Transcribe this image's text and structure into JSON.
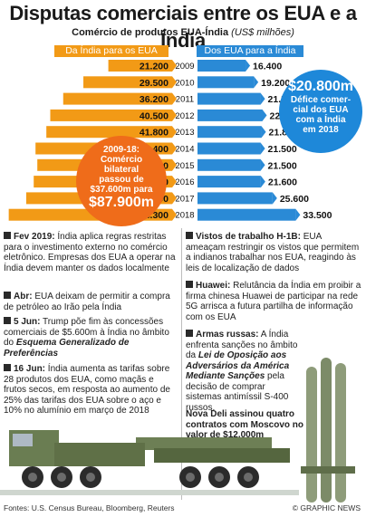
{
  "title": "Disputas comerciais entre os EUA e a Índia",
  "subtitle_main": "Comércio de produtos EUA-Índia",
  "subtitle_unit": "(US$ milhões)",
  "colors": {
    "india_to_us": "#f29a16",
    "us_to_india": "#2a8ad6",
    "orange_callout": "#ef6c1a",
    "blue_callout": "#1e88d9"
  },
  "chart_data": {
    "type": "bar",
    "title": "Comércio de produtos EUA-Índia (US$ milhões)",
    "categories": [
      "2009",
      "2010",
      "2011",
      "2012",
      "2013",
      "2014",
      "2015",
      "2016",
      "2017",
      "2018"
    ],
    "series": [
      {
        "name": "Da Índia para os EUA",
        "values": [
          21200,
          29500,
          36200,
          40500,
          41800,
          45400,
          44800,
          46000,
          48500,
          54300
        ],
        "labels": [
          "21.200",
          "29.500",
          "36.200",
          "40.500",
          "41.800",
          "45.400",
          "44.800",
          "46.000",
          "48.500",
          "54.300"
        ]
      },
      {
        "name": "Dos EUA para a Índia",
        "values": [
          16400,
          19200,
          21500,
          22100,
          21800,
          21500,
          21500,
          21600,
          25600,
          33500
        ],
        "labels": [
          "16.400",
          "19.200",
          "21.500",
          "22.100",
          "21.800",
          "21.500",
          "21.500",
          "21.600",
          "25.600",
          "33.500"
        ]
      }
    ],
    "legend": "top"
  },
  "callout_blue": {
    "big": "$20.800m",
    "small": [
      "Déficе comer-",
      "cial dos EUA",
      "com a Índia",
      "em 2018"
    ]
  },
  "callout_orange": {
    "small": [
      "2009-18:",
      "Comércio",
      "bilateral",
      "passou de",
      "$37.600m para"
    ],
    "big": "$87.900m"
  },
  "notes_left": [
    {
      "head": "Fev 2019:",
      "text": " Índia aplica regras restritas para o investimento externo no comércio eletrônico. Empresas dos EUA a operar na Índia devem manter os dados localmente"
    },
    {
      "head": "Abr:",
      "text": " EUA deixam de permitir a compra de petróleo ao Irão pela Índia"
    },
    {
      "head": "5 Jun:",
      "text": " Trump põe fim às concessões comerciais de $5.600m à Índia no âmbito do ",
      "em": "Esquema Generalizado de Preferências"
    },
    {
      "head": "16 Jun:",
      "text": " Índia aumenta as tarifas sobre 28 produtos dos EUA, como maçãs e frutos secos, em resposta ao aumento de 25% das tarifas dos EUA sobre o aço e 10% no alumínio em março de 2018"
    }
  ],
  "notes_right": [
    {
      "head": "Vistos de trabalho H-1B:",
      "text": " EUA ameaçam restringir os vistos que permitem a indianos trabalhar nos EUA, reagindo às leis de localização de dados"
    },
    {
      "head": "Huawei:",
      "text": " Relutância da Índia em proibir a firma chinesa Huawei de participar na rede 5G arrisca a futura partilha de informação com os EUA"
    },
    {
      "head": "Armas russas:",
      "text": " A Índia enfrenta sanções no âmbito da ",
      "em": "Lei de Oposição aos Adversários da América Mediante Sanções",
      "tail": " pela decisão de comprar sistemas antimíssil S-400 russos."
    }
  ],
  "highlight": "Nova Deli assinou quatro contratos com Moscovo no valor de $12.000m",
  "footer_left": "Fontes: U.S. Census Bureau, Bloomberg, Reuters",
  "footer_right": "© GRAPHIC NEWS"
}
